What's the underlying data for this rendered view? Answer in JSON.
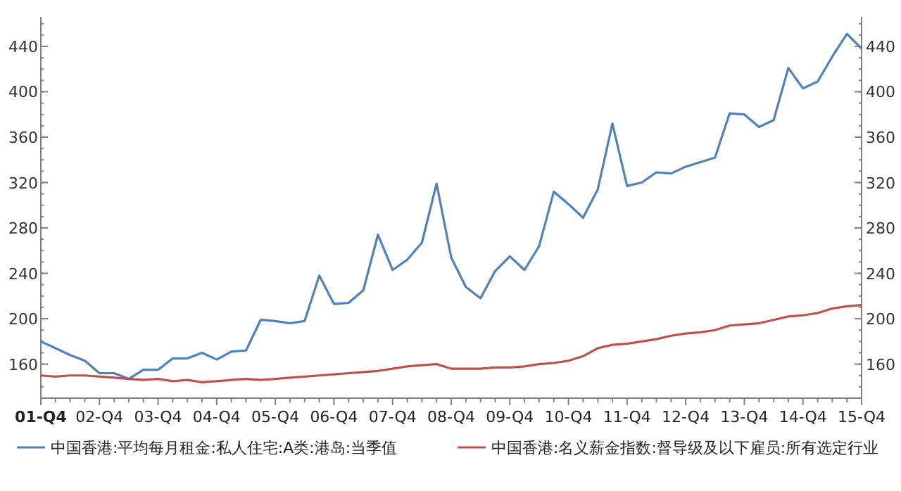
{
  "chart_data": {
    "type": "line",
    "categories": [
      "01-Q4",
      null,
      null,
      null,
      "02-Q4",
      null,
      null,
      null,
      "03-Q4",
      null,
      null,
      null,
      "04-Q4",
      null,
      null,
      null,
      "05-Q4",
      null,
      null,
      null,
      "06-Q4",
      null,
      null,
      null,
      "07-Q4",
      null,
      null,
      null,
      "08-Q4",
      null,
      null,
      null,
      "09-Q4",
      null,
      null,
      null,
      "10-Q4",
      null,
      null,
      null,
      "11-Q4",
      null,
      null,
      null,
      "12-Q4",
      null,
      null,
      null,
      "13-Q4",
      null,
      null,
      null,
      "14-Q4",
      null,
      null,
      null,
      "15-Q4"
    ],
    "series": [
      {
        "name": "中国香港:平均每月租金:私人住宅:A类:港岛:当季值",
        "color": "#4f81bd",
        "values": [
          180,
          174,
          168,
          163,
          152,
          152,
          147,
          155,
          155,
          165,
          165,
          170,
          164,
          171,
          172,
          199,
          198,
          196,
          198,
          238,
          213,
          214,
          225,
          274,
          243,
          252,
          267,
          319,
          254,
          228,
          218,
          242,
          255,
          243,
          264,
          312,
          301,
          289,
          314,
          372,
          317,
          320,
          329,
          328,
          334,
          338,
          342,
          381,
          380,
          369,
          375,
          421,
          403,
          409,
          431,
          451,
          438
        ]
      },
      {
        "name": "中国香港:名义薪金指数:督导级及以下雇员:所有选定行业",
        "color": "#c0504d",
        "values": [
          150,
          149,
          150,
          150,
          149,
          148,
          147,
          146,
          147,
          145,
          146,
          144,
          145,
          146,
          147,
          146,
          147,
          148,
          149,
          150,
          151,
          152,
          153,
          154,
          156,
          158,
          159,
          160,
          156,
          156,
          156,
          157,
          157,
          158,
          160,
          161,
          163,
          167,
          174,
          177,
          178,
          180,
          182,
          185,
          187,
          188,
          190,
          194,
          195,
          196,
          199,
          202,
          203,
          205,
          209,
          211,
          212
        ]
      }
    ],
    "ylim": [
      130,
      466
    ],
    "yticks": [
      160,
      200,
      240,
      280,
      320,
      360,
      400,
      440
    ],
    "y2lim": [
      130,
      466
    ],
    "y2ticks": [
      160,
      200,
      240,
      280,
      320,
      360,
      400,
      440
    ],
    "grid": false,
    "legend": "bottom",
    "marker": "none",
    "line_style": "solid"
  }
}
